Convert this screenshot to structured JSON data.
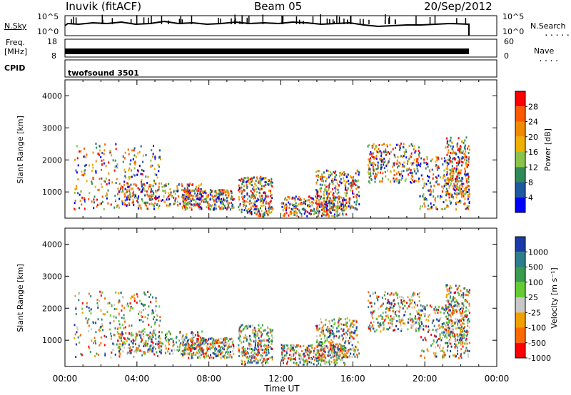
{
  "header": {
    "station": "Inuvik (fitACF)",
    "beam": "Beam 05",
    "date": "20/Sep/2012"
  },
  "nsky_panel": {
    "left_label": "N.Sky",
    "right_label": "N.Search",
    "left_ticks": [
      "10^5",
      "10^0"
    ],
    "right_ticks": [
      "10^5",
      "10^0"
    ]
  },
  "freq_panel": {
    "left_label_line1": "Freq.",
    "left_label_line2": "[MHz]",
    "right_label": "Nave",
    "left_ticks": [
      "18",
      "8"
    ],
    "right_ticks": [
      "60",
      "0"
    ]
  },
  "cpid_panel": {
    "label": "CPID",
    "program": "twofsound 3501"
  },
  "chart_data": [
    {
      "type": "heatmap",
      "quantity": "Power",
      "ylabel": "Slant Range [km]",
      "y_ticks": [
        "1000",
        "2000",
        "3000",
        "4000"
      ],
      "ylim": [
        180,
        4500
      ],
      "colorbar_label": "Power [dB]",
      "colorbar_ticks": [
        "28",
        "24",
        "20",
        "16",
        "12",
        "8",
        "4"
      ],
      "colorbar_colors": [
        "#ff0000",
        "#ff5a00",
        "#f28a00",
        "#f0b000",
        "#8bc34a",
        "#2e8b57",
        "#1e5aa0",
        "#0000ff"
      ]
    },
    {
      "type": "heatmap",
      "quantity": "Velocity",
      "ylabel": "Slant Range [km]",
      "y_ticks": [
        "1000",
        "2000",
        "3000",
        "4000"
      ],
      "ylim": [
        180,
        4500
      ],
      "colorbar_label": "Velocity [m s⁻¹]",
      "colorbar_ticks": [
        "1000",
        "500",
        "100",
        "25",
        "-25",
        "-100",
        "-500",
        "-1000"
      ],
      "colorbar_colors": [
        "#1a3aa8",
        "#2e7d8a",
        "#3a9a50",
        "#66cc33",
        "#c8c8c8",
        "#f0a000",
        "#ff6a00",
        "#ff0000"
      ]
    }
  ],
  "time_axis": {
    "xlabel": "Time UT",
    "ticks": [
      "00:00",
      "04:00",
      "08:00",
      "12:00",
      "16:00",
      "20:00",
      "00:00"
    ]
  }
}
